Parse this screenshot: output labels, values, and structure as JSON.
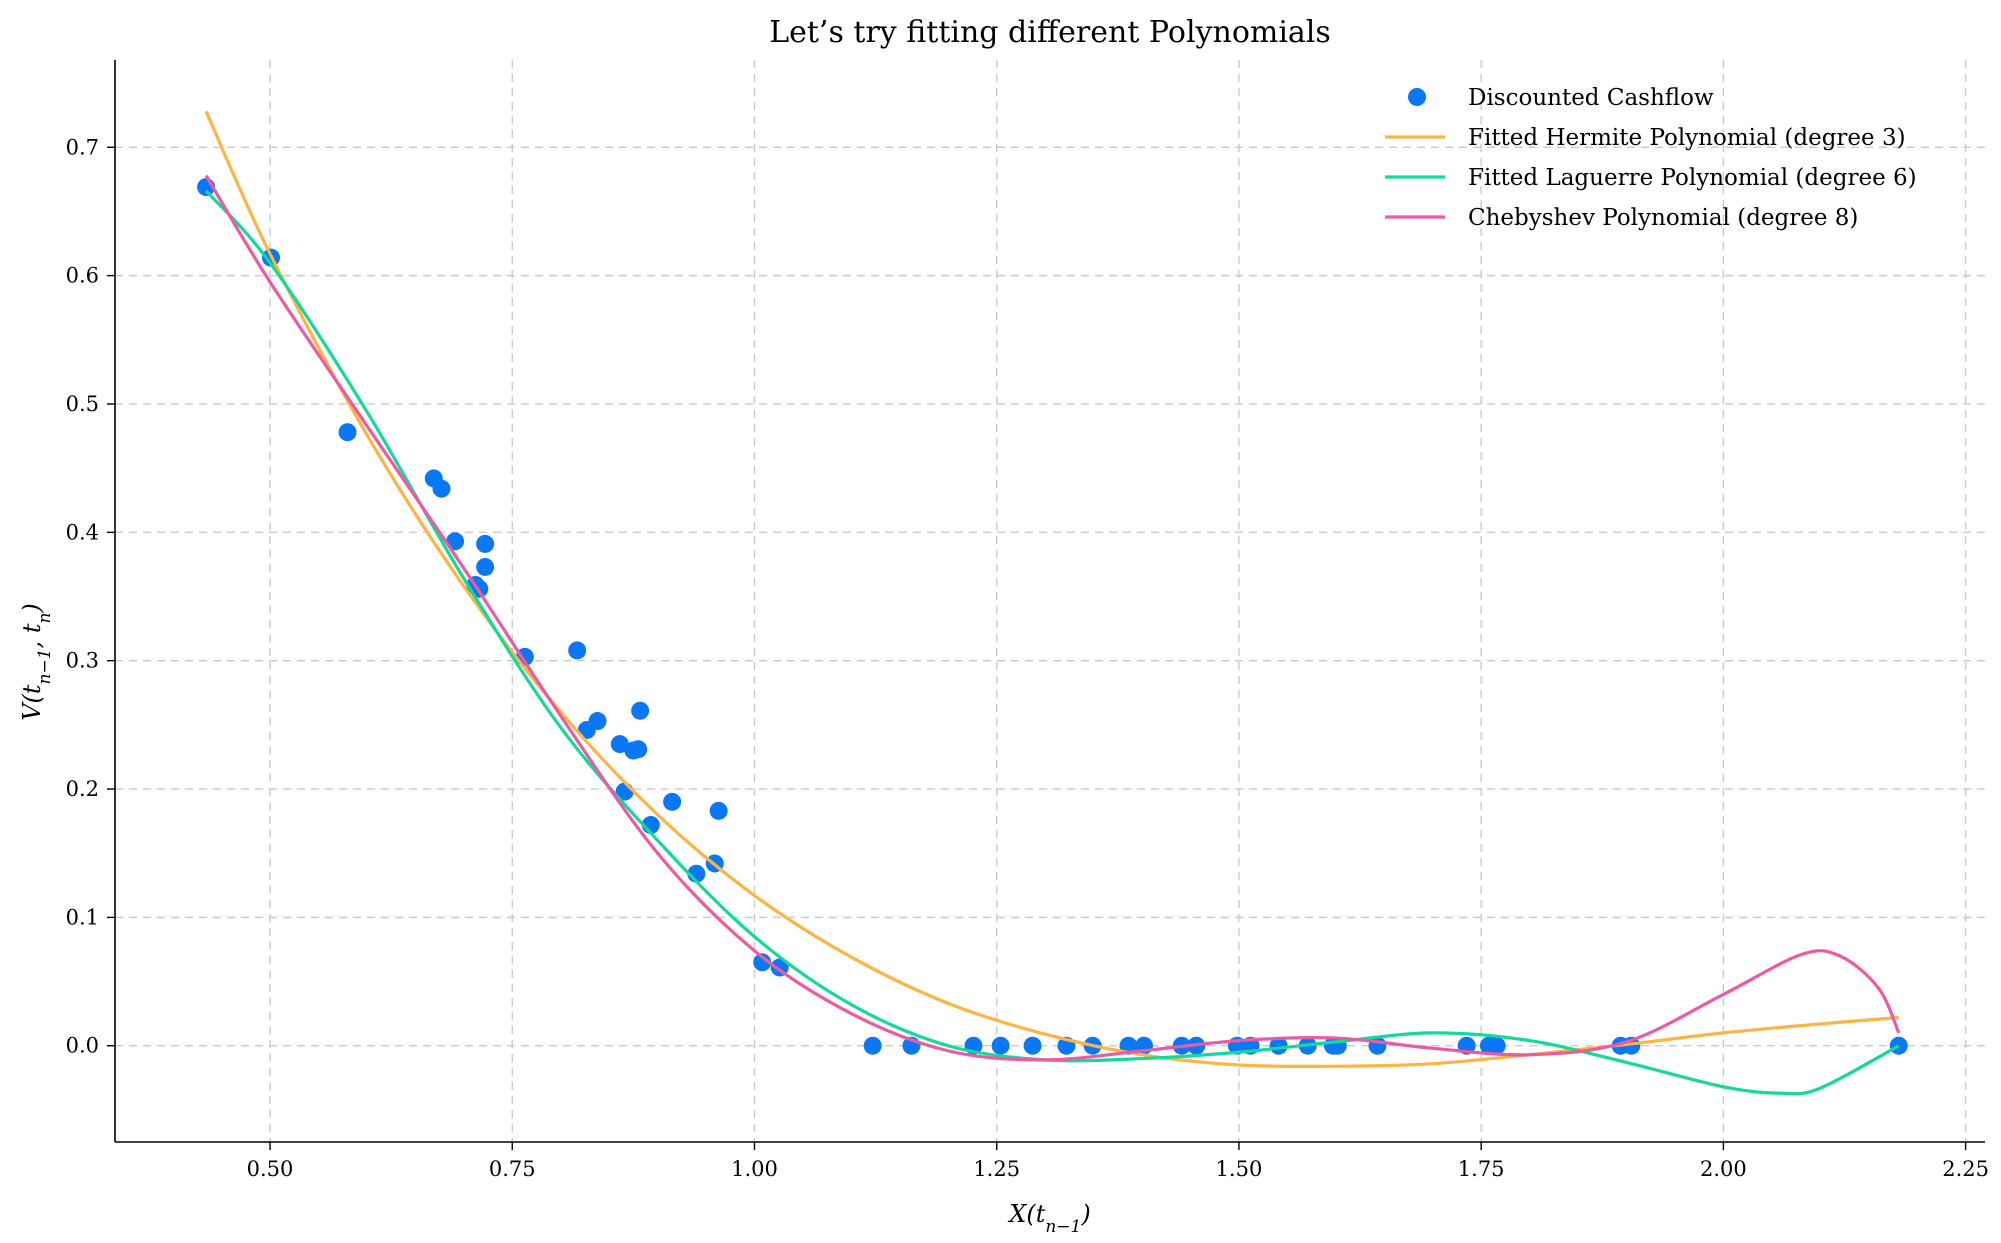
{
  "chart_data": {
    "type": "scatter",
    "title": "Let’s try fitting different Polynomials",
    "xlabel": "X(t_{n−1})",
    "ylabel": "V(t_{n−1}, t_n)",
    "xlim": [
      0.34,
      2.27
    ],
    "ylim": [
      -0.075,
      0.768
    ],
    "xticks": [
      0.5,
      0.75,
      1.0,
      1.25,
      1.5,
      1.75,
      2.0,
      2.25
    ],
    "xtick_labels": [
      "0.50",
      "0.75",
      "1.00",
      "1.25",
      "1.50",
      "1.75",
      "2.00",
      "2.25"
    ],
    "yticks": [
      0.0,
      0.1,
      0.2,
      0.3,
      0.4,
      0.5,
      0.6,
      0.7
    ],
    "ytick_labels": [
      "0.0",
      "0.1",
      "0.2",
      "0.3",
      "0.4",
      "0.5",
      "0.6",
      "0.7"
    ],
    "grid": true,
    "legend_position": "top-right",
    "series": [
      {
        "name": "Discounted Cashflow",
        "kind": "scatter",
        "color": "#0a78f5",
        "points": [
          [
            0.434,
            0.669
          ],
          [
            0.501,
            0.614
          ],
          [
            0.58,
            0.478
          ],
          [
            0.669,
            0.442
          ],
          [
            0.677,
            0.434
          ],
          [
            0.691,
            0.393
          ],
          [
            0.712,
            0.359
          ],
          [
            0.716,
            0.356
          ],
          [
            0.722,
            0.391
          ],
          [
            0.722,
            0.373
          ],
          [
            0.763,
            0.303
          ],
          [
            0.817,
            0.308
          ],
          [
            0.827,
            0.246
          ],
          [
            0.838,
            0.253
          ],
          [
            0.861,
            0.235
          ],
          [
            0.866,
            0.198
          ],
          [
            0.875,
            0.23
          ],
          [
            0.88,
            0.231
          ],
          [
            0.882,
            0.261
          ],
          [
            0.893,
            0.172
          ],
          [
            0.915,
            0.19
          ],
          [
            0.94,
            0.134
          ],
          [
            0.959,
            0.142
          ],
          [
            0.963,
            0.183
          ],
          [
            1.008,
            0.065
          ],
          [
            1.026,
            0.061
          ],
          [
            1.122,
            0.0
          ],
          [
            1.162,
            0.0
          ],
          [
            1.226,
            0.0
          ],
          [
            1.254,
            0.0
          ],
          [
            1.287,
            0.0
          ],
          [
            1.322,
            0.0
          ],
          [
            1.349,
            0.0
          ],
          [
            1.386,
            0.0
          ],
          [
            1.402,
            0.0
          ],
          [
            1.441,
            0.0
          ],
          [
            1.456,
            0.0
          ],
          [
            1.498,
            0.0
          ],
          [
            1.512,
            0.0
          ],
          [
            1.541,
            0.0
          ],
          [
            1.571,
            0.0
          ],
          [
            1.597,
            0.0
          ],
          [
            1.602,
            0.0
          ],
          [
            1.643,
            0.0
          ],
          [
            1.735,
            0.0
          ],
          [
            1.758,
            0.0
          ],
          [
            1.766,
            0.0
          ],
          [
            1.894,
            0.0
          ],
          [
            1.905,
            0.0
          ],
          [
            2.181,
            0.0
          ]
        ]
      },
      {
        "name": "Fitted Hermite Polynomial (degree 3)",
        "kind": "line",
        "color": "#fdb443",
        "points": [
          [
            0.434,
            0.728
          ],
          [
            0.5,
            0.617
          ],
          [
            0.6,
            0.476
          ],
          [
            0.7,
            0.358
          ],
          [
            0.8,
            0.26
          ],
          [
            0.9,
            0.18
          ],
          [
            1.0,
            0.117
          ],
          [
            1.1,
            0.069
          ],
          [
            1.2,
            0.033
          ],
          [
            1.3,
            0.009
          ],
          [
            1.4,
            -0.007
          ],
          [
            1.5,
            -0.015
          ],
          [
            1.6,
            -0.016
          ],
          [
            1.7,
            -0.014
          ],
          [
            1.8,
            -0.007
          ],
          [
            1.9,
            0.001
          ],
          [
            2.0,
            0.01
          ],
          [
            2.1,
            0.017
          ],
          [
            2.181,
            0.022
          ]
        ]
      },
      {
        "name": "Fitted Laguerre Polynomial (degree 6)",
        "kind": "line",
        "color": "#13d99b",
        "points": [
          [
            0.434,
            0.666
          ],
          [
            0.5,
            0.61
          ],
          [
            0.6,
            0.494
          ],
          [
            0.7,
            0.364
          ],
          [
            0.8,
            0.248
          ],
          [
            0.9,
            0.16
          ],
          [
            1.0,
            0.085
          ],
          [
            1.1,
            0.032
          ],
          [
            1.2,
            0.0
          ],
          [
            1.3,
            -0.011
          ],
          [
            1.4,
            -0.01
          ],
          [
            1.5,
            -0.005
          ],
          [
            1.6,
            0.003
          ],
          [
            1.7,
            0.01
          ],
          [
            1.8,
            0.004
          ],
          [
            1.9,
            -0.013
          ],
          [
            2.0,
            -0.032
          ],
          [
            2.06,
            -0.037
          ],
          [
            2.1,
            -0.033
          ],
          [
            2.181,
            0.0
          ]
        ]
      },
      {
        "name": "Chebyshev Polynomial (degree 8)",
        "kind": "line",
        "color": "#ec5aa4",
        "points": [
          [
            0.434,
            0.678
          ],
          [
            0.5,
            0.595
          ],
          [
            0.6,
            0.483
          ],
          [
            0.7,
            0.372
          ],
          [
            0.8,
            0.257
          ],
          [
            0.9,
            0.15
          ],
          [
            1.0,
            0.074
          ],
          [
            1.1,
            0.025
          ],
          [
            1.2,
            -0.004
          ],
          [
            1.3,
            -0.011
          ],
          [
            1.4,
            -0.004
          ],
          [
            1.5,
            0.004
          ],
          [
            1.6,
            0.006
          ],
          [
            1.7,
            -0.002
          ],
          [
            1.8,
            -0.007
          ],
          [
            1.9,
            0.003
          ],
          [
            2.0,
            0.04
          ],
          [
            2.08,
            0.071
          ],
          [
            2.12,
            0.07
          ],
          [
            2.16,
            0.045
          ],
          [
            2.181,
            0.01
          ]
        ]
      }
    ]
  }
}
